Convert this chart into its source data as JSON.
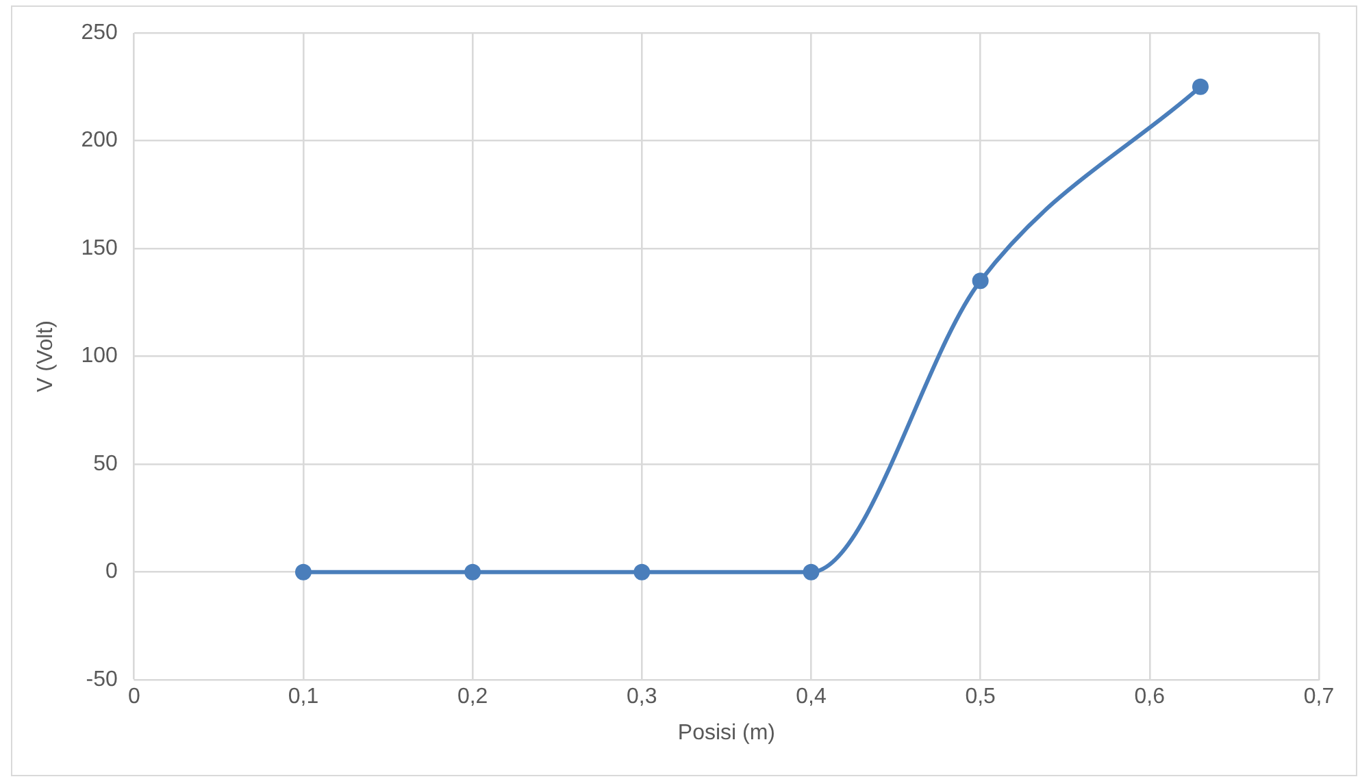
{
  "chart_data": {
    "type": "line",
    "xlabel": "Posisi (m)",
    "ylabel": "V (Volt)",
    "x": [
      0.1,
      0.2,
      0.3,
      0.4,
      0.5,
      0.63
    ],
    "series": [
      {
        "color": "#4a7ebb",
        "values": [
          0,
          0,
          0,
          0,
          135,
          225
        ]
      }
    ],
    "xlim": [
      0,
      0.7
    ],
    "xticks": [
      0,
      {
        "value": 0.1,
        "label": "0,1"
      },
      {
        "value": 0.2,
        "label": "0,2"
      },
      {
        "value": 0.3,
        "label": "0,3"
      },
      {
        "value": 0.4,
        "label": "0,4"
      },
      {
        "value": 0.5,
        "label": "0,5"
      },
      {
        "value": 0.6,
        "label": "0,6"
      },
      {
        "value": 0.7,
        "label": "0,7"
      }
    ],
    "ylim": [
      -50,
      250
    ],
    "yticks": [
      -50,
      0,
      50,
      100,
      150,
      200,
      250
    ],
    "grid": true,
    "legend": false,
    "marker": "circle",
    "line_style": "solid"
  }
}
